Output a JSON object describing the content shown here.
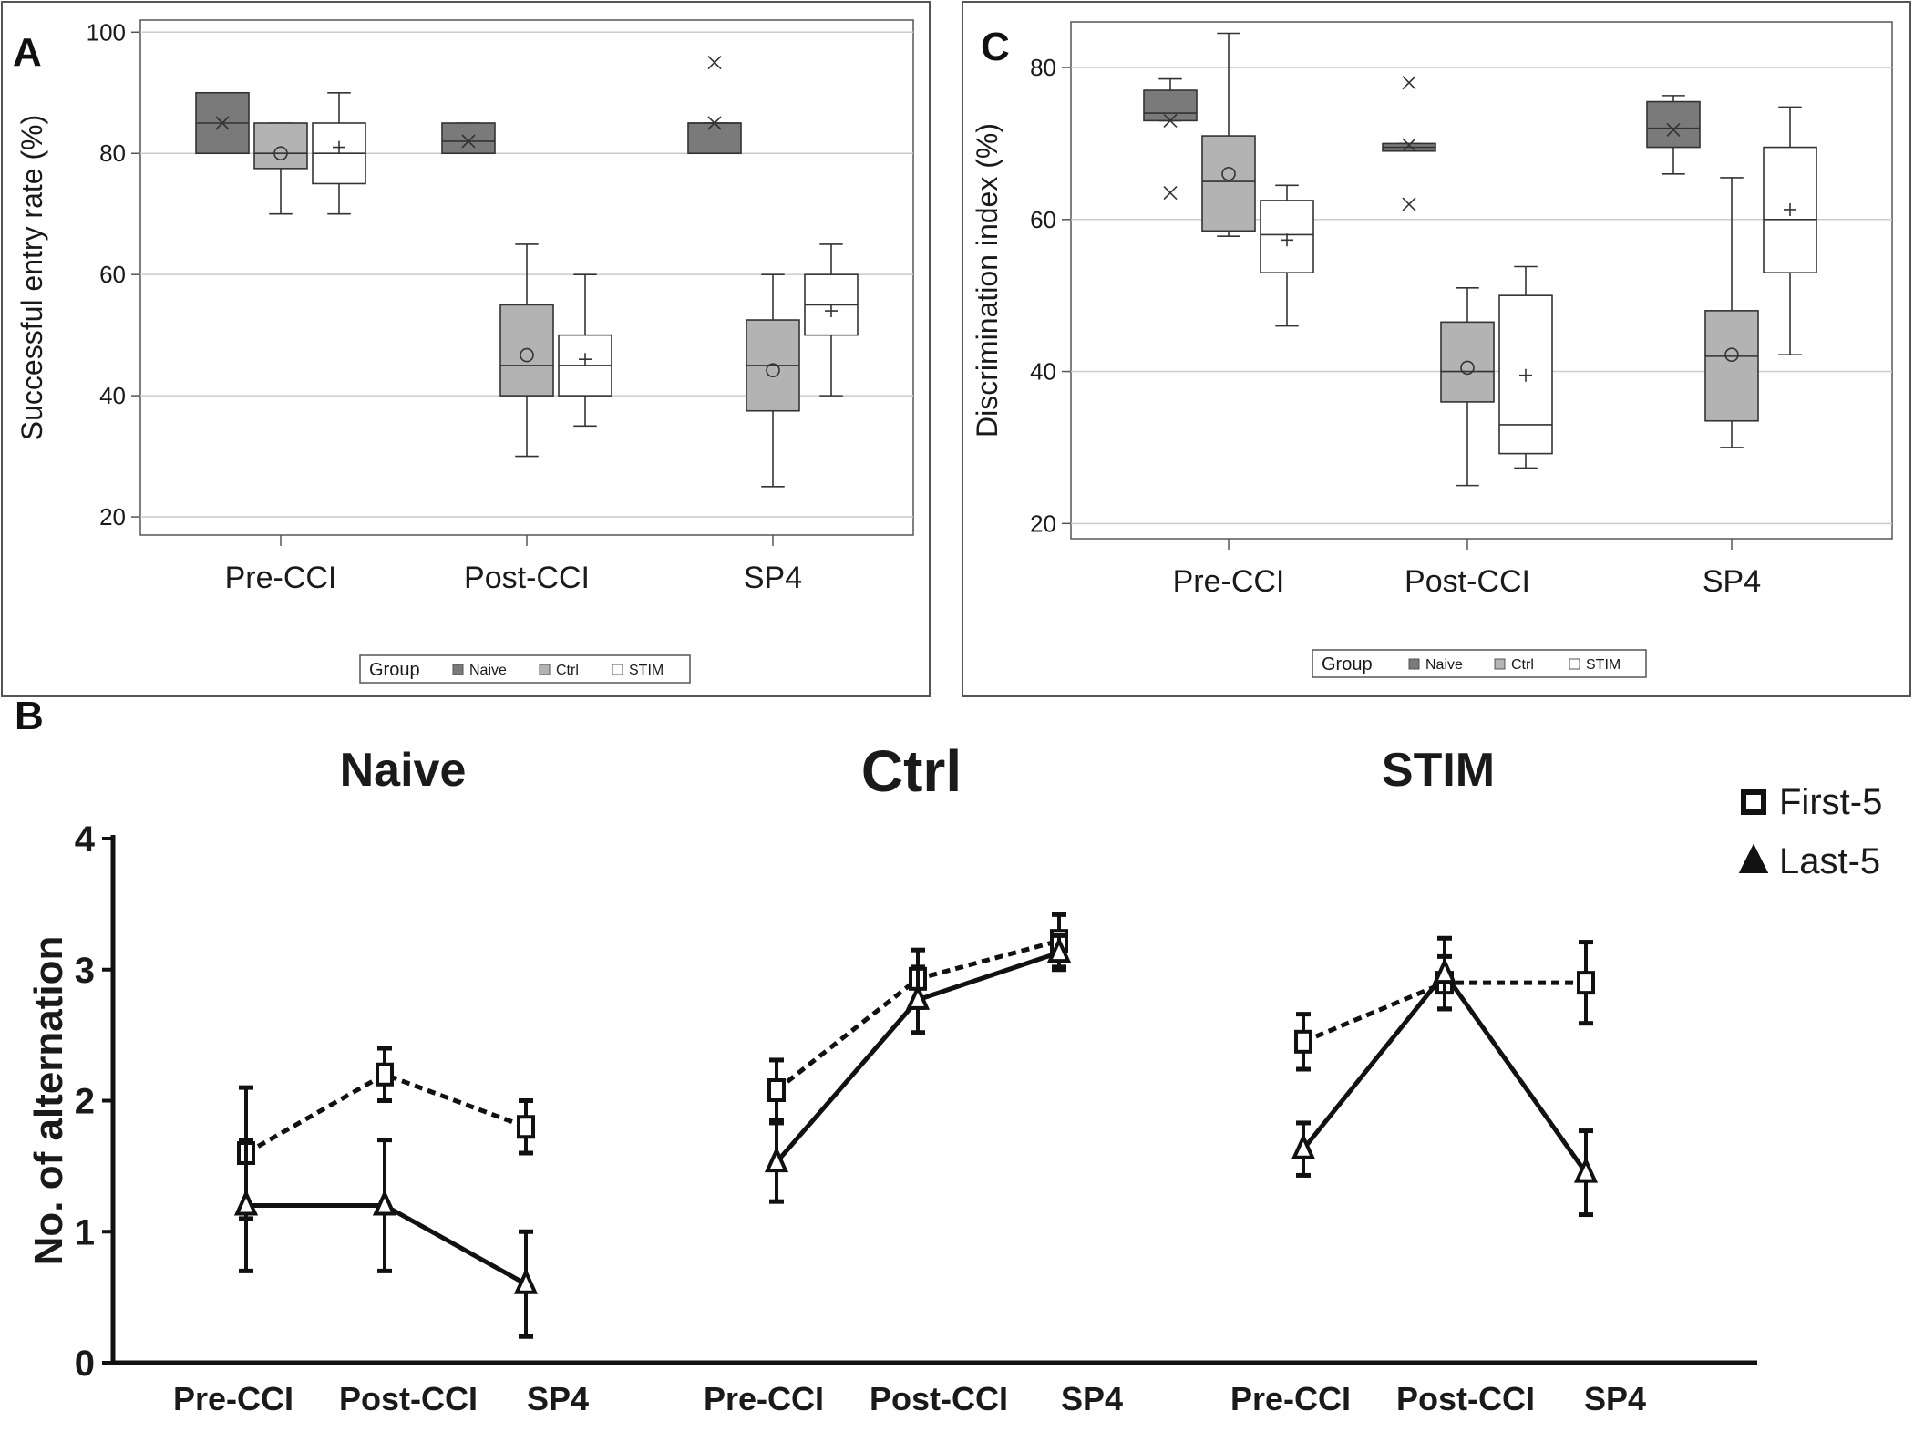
{
  "figure": {
    "panel_a_letter": "A",
    "panel_b_letter": "B",
    "panel_c_letter": "C"
  },
  "colors": {
    "naive": "#7a7a7a",
    "ctrl": "#b3b3b3",
    "stim": "#ffffff",
    "grid": "#cccccc",
    "frame": "#555555",
    "ink": "#1a1a1a"
  },
  "chart_data": [
    {
      "panel": "A",
      "type": "box",
      "xlabel": "",
      "ylabel": "Successful entry rate (%)",
      "ylim": [
        17,
        102
      ],
      "yticks": [
        20,
        40,
        60,
        80,
        100
      ],
      "grid": true,
      "categories": [
        "Pre-CCI",
        "Post-CCI",
        "SP4"
      ],
      "legend": {
        "title": "Group",
        "entries": [
          "Naive",
          "Ctrl",
          "STIM"
        ],
        "placement": "bottom"
      },
      "series": [
        {
          "name": "Naive",
          "color_key": "naive",
          "mean_marker": "x",
          "boxes": [
            {
              "category": "Pre-CCI",
              "q1": 80,
              "median": 85,
              "q3": 90,
              "whisker_low": 80,
              "whisker_high": 90,
              "mean": 85,
              "outliers": []
            },
            {
              "category": "Post-CCI",
              "q1": 80,
              "median": 82,
              "q3": 85,
              "whisker_low": 80,
              "whisker_high": 85,
              "mean": 82,
              "outliers": []
            },
            {
              "category": "SP4",
              "q1": 80,
              "median": 85,
              "q3": 85,
              "whisker_low": 80,
              "whisker_high": 85,
              "mean": 85,
              "outliers": [
                95
              ]
            }
          ]
        },
        {
          "name": "Ctrl",
          "color_key": "ctrl",
          "mean_marker": "o",
          "boxes": [
            {
              "category": "Pre-CCI",
              "q1": 77.5,
              "median": 80,
              "q3": 85,
              "whisker_low": 70,
              "whisker_high": 85,
              "mean": 80,
              "outliers": []
            },
            {
              "category": "Post-CCI",
              "q1": 40,
              "median": 45,
              "q3": 55,
              "whisker_low": 30,
              "whisker_high": 65,
              "mean": 46.7,
              "outliers": []
            },
            {
              "category": "SP4",
              "q1": 37.5,
              "median": 45,
              "q3": 52.5,
              "whisker_low": 25,
              "whisker_high": 60,
              "mean": 44.2,
              "outliers": []
            }
          ]
        },
        {
          "name": "STIM",
          "color_key": "stim",
          "mean_marker": "+",
          "boxes": [
            {
              "category": "Pre-CCI",
              "q1": 75,
              "median": 80,
              "q3": 85,
              "whisker_low": 70,
              "whisker_high": 90,
              "mean": 81,
              "outliers": []
            },
            {
              "category": "Post-CCI",
              "q1": 40,
              "median": 45,
              "q3": 50,
              "whisker_low": 35,
              "whisker_high": 60,
              "mean": 46,
              "outliers": []
            },
            {
              "category": "SP4",
              "q1": 50,
              "median": 55,
              "q3": 60,
              "whisker_low": 40,
              "whisker_high": 65,
              "mean": 54,
              "outliers": []
            }
          ]
        }
      ]
    },
    {
      "panel": "C",
      "type": "box",
      "xlabel": "",
      "ylabel": "Discrimination index (%)",
      "ylim": [
        18,
        86
      ],
      "yticks": [
        20,
        40,
        60,
        80
      ],
      "grid": true,
      "categories": [
        "Pre-CCI",
        "Post-CCI",
        "SP4"
      ],
      "legend": {
        "title": "Group",
        "entries": [
          "Naive",
          "Ctrl",
          "STIM"
        ],
        "placement": "bottom"
      },
      "series": [
        {
          "name": "Naive",
          "color_key": "naive",
          "mean_marker": "x",
          "boxes": [
            {
              "category": "Pre-CCI",
              "q1": 73,
              "median": 74,
              "q3": 77,
              "whisker_low": 73,
              "whisker_high": 78.5,
              "mean": 73,
              "outliers": [
                63.5
              ]
            },
            {
              "category": "Post-CCI",
              "q1": 69,
              "median": 69.5,
              "q3": 70,
              "whisker_low": 69,
              "whisker_high": 70,
              "mean": 69.8,
              "outliers": [
                78,
                62
              ]
            },
            {
              "category": "SP4",
              "q1": 69.5,
              "median": 72,
              "q3": 75.5,
              "whisker_low": 66,
              "whisker_high": 76.3,
              "mean": 71.8,
              "outliers": []
            }
          ]
        },
        {
          "name": "Ctrl",
          "color_key": "ctrl",
          "mean_marker": "o",
          "boxes": [
            {
              "category": "Pre-CCI",
              "q1": 58.5,
              "median": 65,
              "q3": 71,
              "whisker_low": 57.8,
              "whisker_high": 84.5,
              "mean": 66,
              "outliers": []
            },
            {
              "category": "Post-CCI",
              "q1": 36,
              "median": 40,
              "q3": 46.5,
              "whisker_low": 25,
              "whisker_high": 51,
              "mean": 40.5,
              "outliers": []
            },
            {
              "category": "SP4",
              "q1": 33.5,
              "median": 42,
              "q3": 48,
              "whisker_low": 30,
              "whisker_high": 65.5,
              "mean": 42.2,
              "outliers": []
            }
          ]
        },
        {
          "name": "STIM",
          "color_key": "stim",
          "mean_marker": "+",
          "boxes": [
            {
              "category": "Pre-CCI",
              "q1": 53,
              "median": 58,
              "q3": 62.5,
              "whisker_low": 46,
              "whisker_high": 64.5,
              "mean": 57.3,
              "outliers": []
            },
            {
              "category": "Post-CCI",
              "q1": 29.2,
              "median": 33,
              "q3": 50,
              "whisker_low": 27.3,
              "whisker_high": 53.8,
              "mean": 39.5,
              "outliers": []
            },
            {
              "category": "SP4",
              "q1": 53,
              "median": 60,
              "q3": 69.5,
              "whisker_low": 42.2,
              "whisker_high": 74.8,
              "mean": 61.3,
              "outliers": []
            }
          ]
        }
      ]
    },
    {
      "panel": "B",
      "type": "line",
      "ylabel": "No. of alternation",
      "ylim": [
        0,
        4
      ],
      "yticks": [
        0,
        1,
        2,
        3,
        4
      ],
      "legend": {
        "entries": [
          "First-5",
          "Last-5"
        ],
        "placement": "top-right"
      },
      "groups": [
        {
          "title": "Naive",
          "categories": [
            "Pre-CCI",
            "Post-CCI",
            "SP4"
          ],
          "series": [
            {
              "name": "First-5",
              "style": "dotted",
              "marker": "square",
              "values": [
                1.6,
                2.2,
                1.8
              ],
              "errors": [
                0.5,
                0.2,
                0.2
              ]
            },
            {
              "name": "Last-5",
              "style": "solid",
              "marker": "triangle",
              "values": [
                1.2,
                1.2,
                0.6
              ],
              "errors": [
                0.5,
                0.5,
                0.4
              ]
            }
          ]
        },
        {
          "title": "Ctrl",
          "categories": [
            "Pre-CCI",
            "Post-CCI",
            "SP4"
          ],
          "series": [
            {
              "name": "First-5",
              "style": "dotted",
              "marker": "square",
              "values": [
                2.08,
                2.93,
                3.22
              ],
              "errors": [
                0.23,
                0.22,
                0.2
              ]
            },
            {
              "name": "Last-5",
              "style": "solid",
              "marker": "triangle",
              "values": [
                1.53,
                2.77,
                3.13
              ],
              "errors": [
                0.3,
                0.25,
                0.13
              ]
            }
          ]
        },
        {
          "title": "STIM",
          "categories": [
            "Pre-CCI",
            "Post-CCI",
            "SP4"
          ],
          "series": [
            {
              "name": "First-5",
              "style": "dotted",
              "marker": "square",
              "values": [
                2.45,
                2.9,
                2.9
              ],
              "errors": [
                0.21,
                0.2,
                0.31
              ]
            },
            {
              "name": "Last-5",
              "style": "solid",
              "marker": "triangle",
              "values": [
                1.63,
                2.97,
                1.45
              ],
              "errors": [
                0.2,
                0.27,
                0.32
              ]
            }
          ]
        }
      ]
    }
  ]
}
